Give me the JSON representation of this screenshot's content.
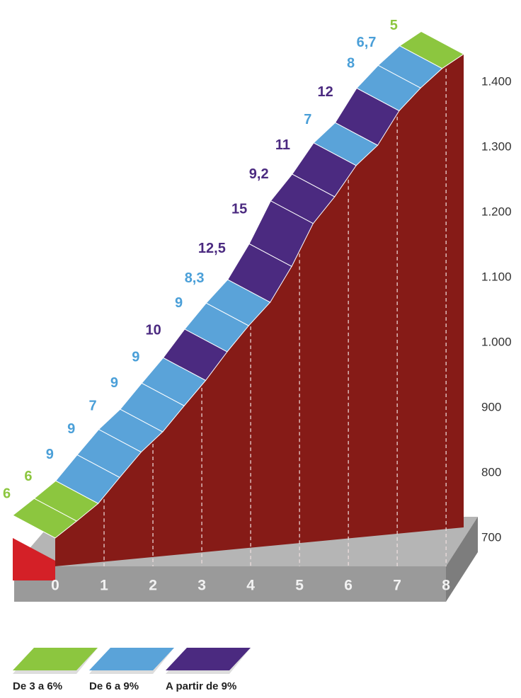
{
  "chart_data": {
    "type": "profile",
    "x": [
      0,
      0.44,
      0.88,
      1.32,
      1.76,
      2.2,
      2.64,
      3.08,
      3.52,
      3.96,
      4.4,
      4.84,
      5.28,
      5.72,
      6.16,
      6.6,
      7.04,
      7.48,
      7.92,
      8.36
    ],
    "values": [
      700,
      726,
      753,
      793,
      832,
      863,
      903,
      942,
      986,
      1026,
      1062,
      1117,
      1183,
      1224,
      1272,
      1303,
      1356,
      1391,
      1421,
      1443
    ],
    "gradients": {
      "values": [
        6,
        6,
        9,
        9,
        7,
        9,
        9,
        10,
        9,
        8.3,
        12.5,
        15,
        9.2,
        11,
        7,
        12,
        8,
        6.7,
        5
      ],
      "value_labels": [
        "6",
        "6",
        "9",
        "9",
        "7",
        "9",
        "9",
        "10",
        "9",
        "8,3",
        "12,5",
        "15",
        "9,2",
        "11",
        "7",
        "12",
        "8",
        "6,7",
        "5"
      ],
      "colors": [
        "#8cc63f",
        "#8cc63f",
        "#5aa3d9",
        "#5aa3d9",
        "#5aa3d9",
        "#5aa3d9",
        "#5aa3d9",
        "#4b2a80",
        "#5aa3d9",
        "#5aa3d9",
        "#4b2a80",
        "#4b2a80",
        "#4b2a80",
        "#4b2a80",
        "#5aa3d9",
        "#4b2a80",
        "#5aa3d9",
        "#5aa3d9",
        "#8cc63f"
      ]
    },
    "hill_color": "#861b17",
    "xlim": [
      0,
      8.36
    ],
    "xticks": [
      0,
      1,
      2,
      3,
      4,
      5,
      6,
      7,
      8
    ],
    "ylim": [
      700,
      1450
    ],
    "yticks": [
      700,
      800,
      900,
      {
        "value": 1000,
        "label": "1.000"
      },
      {
        "value": 1100,
        "label": "1.100"
      },
      {
        "value": 1200,
        "label": "1.200"
      },
      {
        "value": 1300,
        "label": "1.300"
      },
      {
        "value": 1400,
        "label": "1.400"
      }
    ],
    "legend": [
      {
        "name": "De 3 a 6%",
        "color": "#8cc63f"
      },
      {
        "name": "De 6 a 9%",
        "color": "#5aa3d9"
      },
      {
        "name": "A partir de 9%",
        "color": "#4b2a80"
      }
    ]
  }
}
